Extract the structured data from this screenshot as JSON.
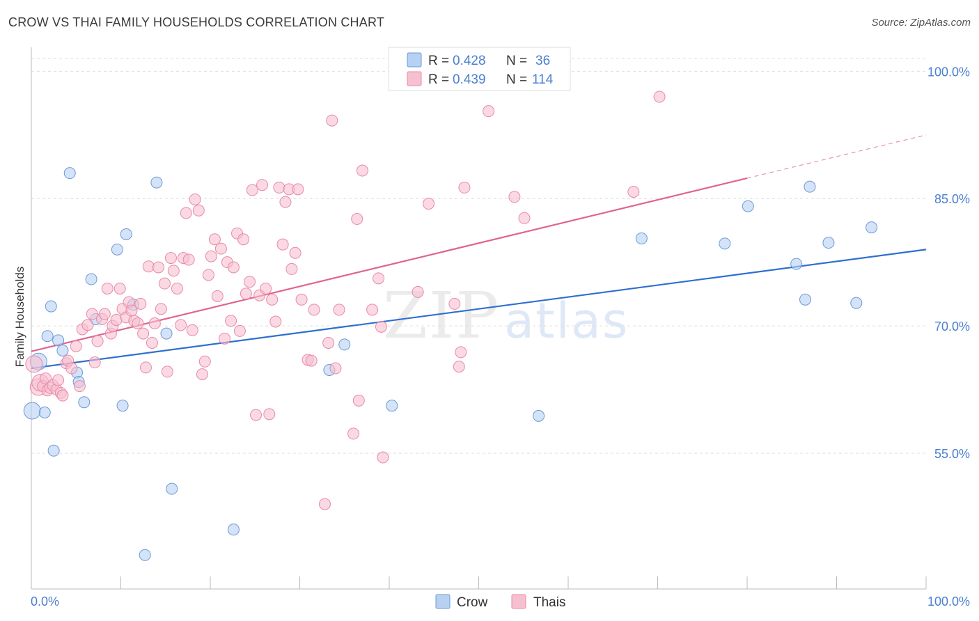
{
  "header": {
    "title": "CROW VS THAI FAMILY HOUSEHOLDS CORRELATION CHART",
    "source": "Source: ZipAtlas.com"
  },
  "watermark": {
    "zip": "ZIP",
    "atlas": "atlas"
  },
  "colors": {
    "crow_fill": "#b7d1f3",
    "crow_stroke": "#6b9ad6",
    "crow_line": "#2e6fcf",
    "thai_fill": "#f7c0d1",
    "thai_stroke": "#e889a8",
    "thai_line": "#e0648e",
    "tick_label": "#4a7fd0",
    "grid": "#dddddd"
  },
  "legend_top": {
    "rows": [
      {
        "r_label": "R = ",
        "r_value": "0.428",
        "n_label": "N = ",
        "n_value": "36"
      },
      {
        "r_label": "R = ",
        "r_value": "0.439",
        "n_label": "N = ",
        "n_value": "114"
      }
    ]
  },
  "chart_data": {
    "type": "scatter",
    "title": "CROW VS THAI FAMILY HOUSEHOLDS CORRELATION CHART",
    "xlabel": "",
    "ylabel": "Family Households",
    "xlim": [
      0,
      100
    ],
    "ylim": [
      39,
      102
    ],
    "x_tick_labels": [
      "0.0%",
      "100.0%"
    ],
    "y_ticks": [
      55,
      70,
      85,
      100
    ],
    "y_tick_labels": [
      "55.0%",
      "70.0%",
      "85.0%",
      "100.0%"
    ],
    "grid": "horizontal dashed",
    "legend_placement": "bottom-center",
    "series": [
      {
        "name": "Crow",
        "r": 0.428,
        "n": 36,
        "trend": {
          "x": [
            0,
            100
          ],
          "y": [
            65.0,
            79.0
          ]
        },
        "points": [
          [
            0.1,
            60.0
          ],
          [
            1.5,
            59.8
          ],
          [
            0.8,
            65.8
          ],
          [
            1.8,
            68.8
          ],
          [
            2.2,
            72.3
          ],
          [
            2.5,
            55.3
          ],
          [
            3.0,
            68.3
          ],
          [
            3.5,
            67.1
          ],
          [
            4.3,
            88.0
          ],
          [
            5.1,
            64.5
          ],
          [
            5.3,
            63.4
          ],
          [
            5.9,
            61.0
          ],
          [
            6.7,
            75.5
          ],
          [
            7.2,
            70.8
          ],
          [
            9.6,
            79.0
          ],
          [
            10.2,
            60.6
          ],
          [
            10.6,
            80.8
          ],
          [
            11.4,
            72.5
          ],
          [
            12.7,
            43.0
          ],
          [
            14.0,
            86.9
          ],
          [
            15.1,
            69.1
          ],
          [
            15.7,
            50.8
          ],
          [
            22.6,
            46.0
          ],
          [
            33.3,
            64.8
          ],
          [
            35.0,
            67.8
          ],
          [
            40.3,
            60.6
          ],
          [
            56.7,
            59.4
          ],
          [
            68.2,
            80.3
          ],
          [
            77.5,
            79.7
          ],
          [
            80.1,
            84.1
          ],
          [
            85.5,
            77.3
          ],
          [
            86.5,
            73.1
          ],
          [
            87.0,
            86.4
          ],
          [
            89.1,
            79.8
          ],
          [
            92.2,
            72.7
          ],
          [
            93.9,
            81.6
          ]
        ]
      },
      {
        "name": "Thais",
        "r": 0.439,
        "n": 114,
        "trend": {
          "x": [
            0,
            80
          ],
          "y": [
            67.0,
            87.4
          ]
        },
        "trend_dashed": {
          "x": [
            80,
            100
          ],
          "y": [
            87.4,
            92.5
          ]
        },
        "points": [
          [
            0.3,
            65.5
          ],
          [
            0.8,
            62.8
          ],
          [
            1.0,
            63.3
          ],
          [
            1.3,
            62.9
          ],
          [
            1.6,
            63.8
          ],
          [
            1.8,
            62.4
          ],
          [
            2.1,
            62.7
          ],
          [
            2.4,
            63.0
          ],
          [
            2.8,
            62.5
          ],
          [
            3.0,
            63.6
          ],
          [
            3.3,
            62.1
          ],
          [
            3.5,
            61.8
          ],
          [
            3.9,
            65.6
          ],
          [
            4.1,
            65.9
          ],
          [
            4.5,
            65.0
          ],
          [
            5.0,
            67.6
          ],
          [
            5.4,
            62.9
          ],
          [
            5.7,
            69.6
          ],
          [
            6.3,
            70.1
          ],
          [
            6.8,
            71.4
          ],
          [
            7.1,
            65.7
          ],
          [
            7.4,
            68.2
          ],
          [
            7.9,
            70.8
          ],
          [
            8.2,
            71.4
          ],
          [
            8.5,
            74.4
          ],
          [
            8.9,
            69.1
          ],
          [
            9.1,
            70.0
          ],
          [
            9.5,
            70.7
          ],
          [
            9.9,
            74.4
          ],
          [
            10.2,
            72.0
          ],
          [
            10.6,
            71.0
          ],
          [
            10.9,
            72.8
          ],
          [
            11.2,
            71.8
          ],
          [
            11.5,
            70.6
          ],
          [
            11.9,
            70.3
          ],
          [
            12.2,
            72.6
          ],
          [
            12.5,
            69.1
          ],
          [
            12.8,
            65.1
          ],
          [
            13.1,
            77.0
          ],
          [
            13.5,
            68.0
          ],
          [
            13.8,
            70.3
          ],
          [
            14.2,
            76.9
          ],
          [
            14.5,
            72.0
          ],
          [
            14.9,
            75.0
          ],
          [
            15.2,
            64.6
          ],
          [
            15.6,
            78.0
          ],
          [
            15.9,
            76.5
          ],
          [
            16.3,
            74.4
          ],
          [
            16.7,
            70.1
          ],
          [
            17.0,
            78.0
          ],
          [
            17.3,
            83.3
          ],
          [
            17.6,
            77.8
          ],
          [
            18.0,
            69.5
          ],
          [
            18.3,
            84.9
          ],
          [
            18.7,
            83.6
          ],
          [
            19.1,
            64.3
          ],
          [
            19.4,
            65.8
          ],
          [
            19.8,
            76.0
          ],
          [
            20.1,
            78.2
          ],
          [
            20.5,
            80.2
          ],
          [
            20.8,
            73.5
          ],
          [
            21.2,
            79.1
          ],
          [
            21.6,
            68.5
          ],
          [
            21.9,
            77.5
          ],
          [
            22.3,
            70.6
          ],
          [
            22.6,
            76.9
          ],
          [
            23.0,
            80.9
          ],
          [
            23.3,
            69.4
          ],
          [
            23.7,
            80.2
          ],
          [
            24.0,
            73.8
          ],
          [
            24.4,
            75.2
          ],
          [
            24.7,
            86.0
          ],
          [
            25.1,
            59.5
          ],
          [
            25.5,
            73.6
          ],
          [
            25.8,
            86.6
          ],
          [
            26.2,
            74.4
          ],
          [
            26.6,
            59.6
          ],
          [
            26.9,
            73.1
          ],
          [
            27.3,
            70.5
          ],
          [
            27.7,
            86.3
          ],
          [
            28.1,
            79.6
          ],
          [
            28.4,
            84.6
          ],
          [
            28.8,
            86.1
          ],
          [
            29.1,
            76.7
          ],
          [
            29.5,
            78.6
          ],
          [
            29.8,
            86.1
          ],
          [
            30.2,
            73.1
          ],
          [
            30.9,
            66.0
          ],
          [
            31.3,
            65.9
          ],
          [
            31.6,
            71.9
          ],
          [
            32.8,
            49.0
          ],
          [
            33.2,
            68.0
          ],
          [
            33.6,
            94.2
          ],
          [
            34.0,
            65.0
          ],
          [
            34.4,
            71.9
          ],
          [
            36.0,
            57.3
          ],
          [
            36.4,
            82.6
          ],
          [
            36.6,
            61.2
          ],
          [
            37.0,
            88.3
          ],
          [
            38.1,
            71.9
          ],
          [
            38.8,
            75.6
          ],
          [
            39.1,
            69.9
          ],
          [
            39.3,
            54.5
          ],
          [
            43.2,
            74.0
          ],
          [
            44.4,
            84.4
          ],
          [
            47.3,
            72.6
          ],
          [
            47.8,
            65.2
          ],
          [
            48.0,
            66.9
          ],
          [
            48.4,
            86.3
          ],
          [
            51.1,
            95.3
          ],
          [
            54.0,
            85.2
          ],
          [
            55.1,
            82.7
          ],
          [
            67.3,
            85.8
          ],
          [
            70.2,
            97.0
          ]
        ]
      }
    ]
  },
  "legend_bottom": {
    "items": [
      "Crow",
      "Thais"
    ]
  }
}
